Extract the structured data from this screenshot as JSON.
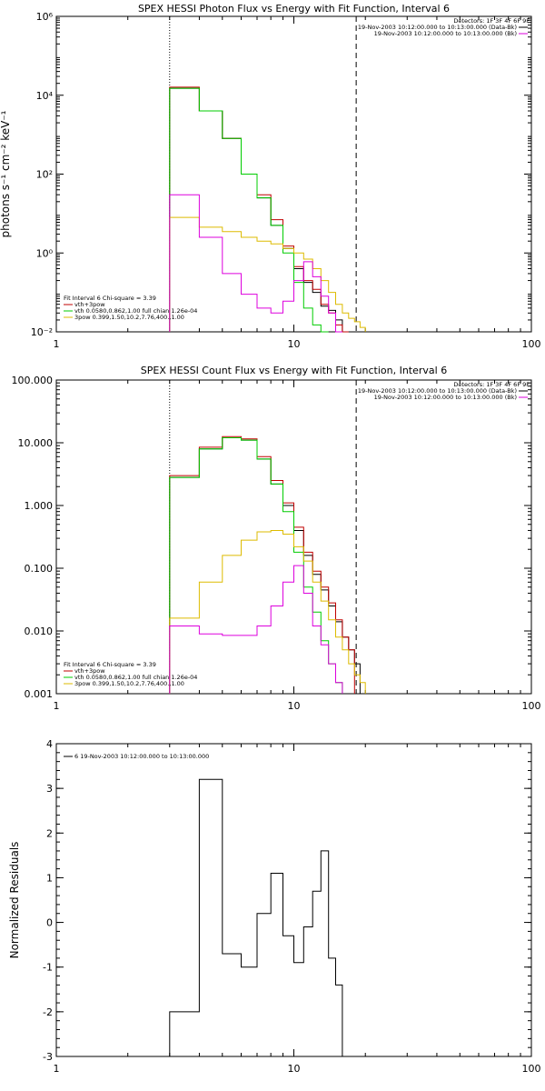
{
  "chart_data": [
    {
      "type": "line",
      "subtype": "step",
      "title": "SPEX HESSI Photon Flux vs Energy with Fit Function, Interval 6",
      "xlabel": "",
      "ylabel": "photons s⁻¹ cm⁻² keV⁻¹",
      "xscale": "log",
      "yscale": "log",
      "xlim": [
        1,
        100
      ],
      "ylim": [
        0.01,
        1000000
      ],
      "xtick_labels": [
        "1",
        "10",
        "100"
      ],
      "ytick_values": [
        0.01,
        1,
        100,
        10000,
        1000000
      ],
      "ytick_labels": [
        "10⁻²",
        "10⁰",
        "10²",
        "10⁴",
        "10⁶"
      ],
      "vlines": [
        {
          "x": 3.0,
          "style": "dotted"
        },
        {
          "x": 18.3,
          "style": "dashed"
        }
      ],
      "legend_right": [
        "Detectors: 1F 3F 4F 6F 9F",
        "19-Nov-2003 10:12:00.000 to 10:13:00.000 (Data-Bk)",
        "19-Nov-2003 10:12:00.000 to 10:13:00.000 (Bk)"
      ],
      "legend_left": [
        "Fit Interval  6    Chi-square = 3.39",
        "vth+3pow",
        "vth 0.0580,0.862,1.00  full chian 1.26e-04",
        "3pow 0.399,1.50,10.2,7.76,400.,1.00"
      ],
      "bin_edges": [
        3,
        4,
        5,
        6,
        7,
        8,
        9,
        10,
        11,
        12,
        13,
        14,
        15,
        16,
        17,
        18,
        19,
        20,
        22
      ],
      "series": [
        {
          "color": "#000000",
          "values": [
            15000,
            4000,
            800,
            100,
            25,
            5,
            1.3,
            0.4,
            0.18,
            0.1,
            0.045,
            0.035,
            0.02,
            0.01,
            null,
            null,
            null,
            null
          ]
        },
        {
          "color": "#c00000",
          "values": [
            16000,
            4000,
            800,
            100,
            30,
            7,
            1.5,
            0.45,
            0.2,
            0.12,
            0.05,
            0.03,
            0.015,
            0.01,
            null,
            null,
            null,
            null
          ]
        },
        {
          "color": "#00cc00",
          "values": [
            15000,
            4000,
            800,
            100,
            25,
            5,
            1.0,
            0.18,
            0.04,
            0.015,
            0.01,
            null,
            null,
            null,
            null,
            null,
            null,
            null
          ]
        },
        {
          "color": "#ddbb00",
          "values": [
            8,
            4.5,
            3.5,
            2.5,
            2.0,
            1.7,
            1.3,
            1.0,
            0.7,
            0.4,
            0.2,
            0.1,
            0.05,
            0.03,
            0.022,
            0.018,
            0.013,
            null
          ]
        },
        {
          "color": "#dd00dd",
          "values": [
            30,
            2.5,
            0.3,
            0.09,
            0.04,
            0.03,
            0.06,
            0.2,
            0.6,
            0.25,
            0.08,
            0.03,
            0.01,
            null,
            null,
            null,
            null,
            null
          ]
        }
      ]
    },
    {
      "type": "line",
      "subtype": "step",
      "title": "SPEX HESSI Count Flux vs Energy with Fit Function, Interval 6",
      "xlabel": "",
      "ylabel": "",
      "xscale": "log",
      "yscale": "log",
      "xlim": [
        1,
        100
      ],
      "ylim": [
        0.001,
        100
      ],
      "xtick_labels": [
        "1",
        "10",
        "100"
      ],
      "ytick_values": [
        0.001,
        0.01,
        0.1,
        1,
        10,
        100
      ],
      "ytick_labels": [
        "0.001",
        "0.010",
        "0.100",
        "1.000",
        "10.000",
        "100.000"
      ],
      "vlines": [
        {
          "x": 3.0,
          "style": "dotted"
        },
        {
          "x": 18.3,
          "style": "dashed"
        }
      ],
      "legend_right": [
        "Detectors: 1F 3F 4F 6F 9F",
        "19-Nov-2003 10:12:00.000 to 10:13:00.000 (Data-Bk)",
        "19-Nov-2003 10:12:00.000 to 10:13:00.000 (Bk)"
      ],
      "legend_left": [
        "Fit Interval  6    Chi-square = 3.39",
        "vth+3pow",
        "vth 0.0580,0.862,1.00  full chian 1.26e-04",
        "3pow 0.399,1.50,10.2,7.76,400.,1.00"
      ],
      "bin_edges": [
        3,
        4,
        5,
        6,
        7,
        8,
        9,
        10,
        11,
        12,
        13,
        14,
        15,
        16,
        17,
        18,
        19,
        20,
        22
      ],
      "series": [
        {
          "color": "#000000",
          "values": [
            2.8,
            8,
            12,
            11,
            5.5,
            2.2,
            1.0,
            0.4,
            0.16,
            0.08,
            0.045,
            0.025,
            0.014,
            0.008,
            0.005,
            0.003,
            null,
            null
          ]
        },
        {
          "color": "#c00000",
          "values": [
            3.0,
            8.5,
            12.5,
            11.5,
            6,
            2.5,
            1.1,
            0.45,
            0.18,
            0.09,
            0.05,
            0.028,
            0.015,
            0.008,
            0.005,
            null,
            null,
            null
          ]
        },
        {
          "color": "#00cc00",
          "values": [
            2.8,
            8,
            12,
            11,
            5.5,
            2.2,
            0.8,
            0.18,
            0.05,
            0.02,
            0.007,
            0.003,
            0.0015,
            null,
            null,
            null,
            null,
            null
          ]
        },
        {
          "color": "#ddbb00",
          "values": [
            0.016,
            0.06,
            0.16,
            0.28,
            0.38,
            0.4,
            0.35,
            0.22,
            0.13,
            0.06,
            0.03,
            0.015,
            0.008,
            0.005,
            0.003,
            0.002,
            0.0015,
            null
          ]
        },
        {
          "color": "#dd00dd",
          "values": [
            0.012,
            0.009,
            0.0085,
            0.0085,
            0.012,
            0.025,
            0.06,
            0.11,
            0.04,
            0.012,
            0.006,
            0.003,
            0.0015,
            null,
            null,
            null,
            null,
            null
          ]
        }
      ]
    },
    {
      "type": "line",
      "subtype": "step",
      "title": "",
      "xlabel": "",
      "ylabel": "Normalized Residuals",
      "xscale": "log",
      "yscale": "linear",
      "xlim": [
        1,
        100
      ],
      "ylim": [
        -3,
        4
      ],
      "xtick_labels": [
        "1",
        "10",
        "100"
      ],
      "ytick_values": [
        -3,
        -2,
        -1,
        0,
        1,
        2,
        3,
        4
      ],
      "ytick_labels": [
        "-3",
        "-2",
        "-1",
        "0",
        "1",
        "2",
        "3",
        "4"
      ],
      "legend_left": [
        "6  19-Nov-2003 10:12:00.000 to 10:13:00.000"
      ],
      "bin_edges": [
        3,
        4,
        5,
        6,
        7,
        8,
        9,
        10,
        11,
        12,
        13,
        14,
        15,
        16,
        17,
        18
      ],
      "series": [
        {
          "color": "#000000",
          "values": [
            -2.0,
            3.2,
            -0.7,
            -1.0,
            0.2,
            1.1,
            -0.3,
            -0.9,
            -0.1,
            0.7,
            1.6,
            -0.8,
            -1.4,
            null,
            null
          ]
        }
      ]
    }
  ]
}
